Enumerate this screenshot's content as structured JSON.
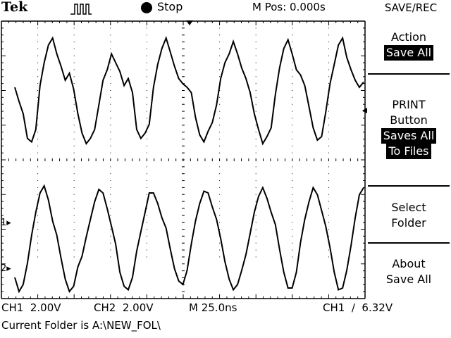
{
  "header": {
    "brand": "Tek",
    "run_state": "Stop",
    "position": "M Pos: 0.000s",
    "menu_title": "SAVE/REC"
  },
  "side_menu": {
    "action_label": "Action",
    "action_value": "Save All",
    "print_line1": "PRINT",
    "print_line2": "Button",
    "print_value_line1": "Saves All",
    "print_value_line2": "To Files",
    "select_line1": "Select",
    "select_line2": "Folder",
    "about_line1": "About",
    "about_line2": "Save All"
  },
  "markers": {
    "ch1": "1",
    "ch2": "2"
  },
  "readout": {
    "ch1_scale": "CH1  2.00V",
    "ch2_scale": "CH2  2.00V",
    "timebase": "M 25.0ns",
    "trigger": "CH1  ∕  6.32V"
  },
  "status_line": "Current Folder is A:\\NEW_FOL\\",
  "colors": {
    "trace": "#000000",
    "graticule": "#000000",
    "background": "#ffffff"
  },
  "chart_data": {
    "type": "line",
    "xlabel": "",
    "ylabel": "",
    "series": [
      {
        "values": [
          0.2,
          -0.6,
          -1.3,
          -2.7,
          -2.9,
          -2.2,
          0.3,
          1.6,
          2.6,
          3.0,
          2.1,
          1.4,
          0.6,
          1.0,
          0.1,
          -1.3,
          -2.4,
          -3.0,
          -2.7,
          -2.2,
          -0.8,
          0.6,
          1.2,
          2.1,
          1.6,
          1.1,
          0.3,
          0.7,
          -0.1,
          -2.2,
          -2.7,
          -2.4,
          -1.9,
          0.2,
          1.5,
          2.4,
          3.0,
          2.2,
          1.4,
          0.7,
          0.4,
          0.2,
          -0.1,
          -1.5,
          -2.5,
          -2.9,
          -2.3,
          -1.8,
          -0.8,
          0.7,
          1.6,
          2.1,
          2.8,
          2.1,
          1.3,
          0.7,
          -0.1,
          -1.3,
          -2.2,
          -3.0,
          -2.6,
          -2.1,
          -0.2,
          1.3,
          2.4,
          2.9,
          2.1,
          1.2,
          0.9,
          0.3,
          -0.9,
          -2.1,
          -2.8,
          -2.6,
          -1.2,
          0.4,
          1.5,
          2.6,
          3.0,
          1.9,
          1.2,
          0.6,
          0.2,
          0.5
        ]
      },
      {
        "values": [
          -2.2,
          -3.0,
          -2.6,
          -1.4,
          0.2,
          1.5,
          2.6,
          3.0,
          2.2,
          1.0,
          0.2,
          -1.1,
          -2.3,
          -3.0,
          -2.7,
          -1.6,
          -1.0,
          0.1,
          1.1,
          2.1,
          2.8,
          2.6,
          1.7,
          0.7,
          -0.3,
          -1.9,
          -2.7,
          -2.9,
          -2.2,
          -0.7,
          0.4,
          1.5,
          2.6,
          2.6,
          2.0,
          1.2,
          0.6,
          -0.6,
          -1.7,
          -2.4,
          -2.6,
          -1.8,
          -0.3,
          1.0,
          2.0,
          2.7,
          2.6,
          1.8,
          1.1,
          0.0,
          -1.3,
          -2.3,
          -2.9,
          -2.6,
          -1.8,
          -0.9,
          0.3,
          1.5,
          2.4,
          2.9,
          2.3,
          1.5,
          0.8,
          -0.6,
          -1.9,
          -2.8,
          -2.8,
          -1.9,
          -0.2,
          1.1,
          2.1,
          2.9,
          2.5,
          1.6,
          0.7,
          -0.5,
          -1.9,
          -2.9,
          -2.8,
          -1.8,
          -0.4,
          1.2,
          2.5,
          2.9
        ]
      }
    ]
  }
}
